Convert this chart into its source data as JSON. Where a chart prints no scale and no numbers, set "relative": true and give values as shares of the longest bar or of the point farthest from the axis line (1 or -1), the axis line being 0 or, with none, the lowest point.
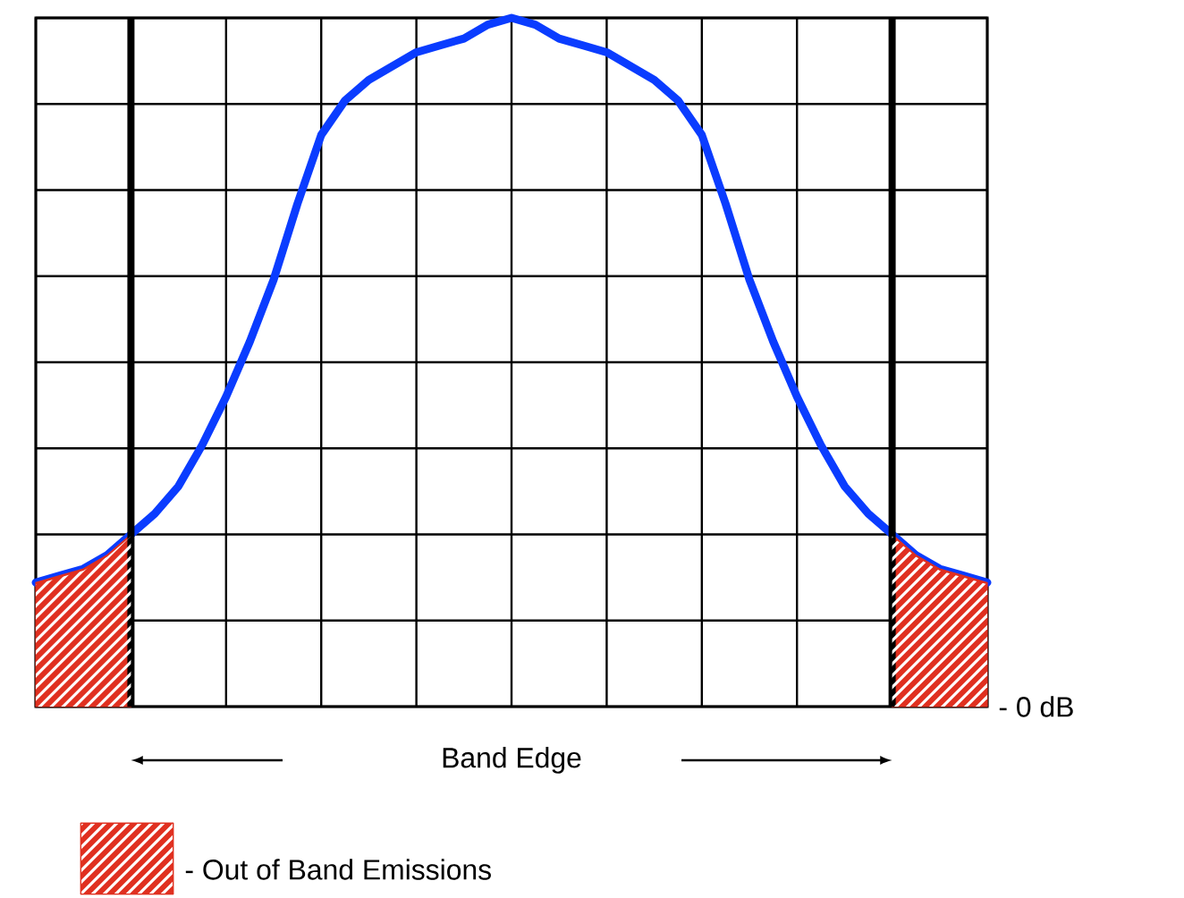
{
  "chart_data": {
    "type": "line",
    "relative": true,
    "categories": [
      null,
      null,
      null,
      null,
      null,
      null,
      null,
      null,
      null,
      null,
      null,
      null,
      null,
      null,
      null,
      null,
      null,
      null,
      null,
      null,
      null,
      null,
      null,
      null,
      null,
      null,
      null,
      null,
      null,
      null,
      null,
      null,
      null,
      null,
      null,
      null,
      null,
      null,
      null,
      null,
      null
    ],
    "grid": true,
    "legend": "bottom",
    "series": [
      {
        "color": "#0a3cff",
        "values": [
          0.18,
          0.19,
          0.2,
          0.22,
          0.25,
          0.28,
          0.32,
          0.38,
          0.45,
          0.53,
          0.62,
          0.73,
          0.83,
          0.88,
          0.91,
          0.93,
          0.95,
          0.96,
          0.97,
          0.99,
          1,
          0.99,
          0.97,
          0.96,
          0.95,
          0.93,
          0.91,
          0.88,
          0.83,
          0.73,
          0.62,
          0.53,
          0.45,
          0.38,
          0.32,
          0.28,
          0.25,
          0.22,
          0.2,
          0.19,
          0.18
        ]
      },
      {
        "type": "area",
        "name": "- Out of Band Emissions",
        "color": "#e03020",
        "values": [
          0.18,
          0.19,
          0.2,
          0.22,
          0.25,
          null,
          null,
          null,
          null,
          null,
          null,
          null,
          null,
          null,
          null,
          null,
          null,
          null,
          null,
          null,
          null,
          null,
          null,
          null,
          null,
          null,
          null,
          null,
          null,
          null,
          null,
          null,
          null,
          null,
          null,
          null,
          0.25,
          0.22,
          0.2,
          0.19,
          0.18
        ]
      }
    ],
    "annotations": [
      "- 0 dB",
      "Band Edge"
    ]
  }
}
